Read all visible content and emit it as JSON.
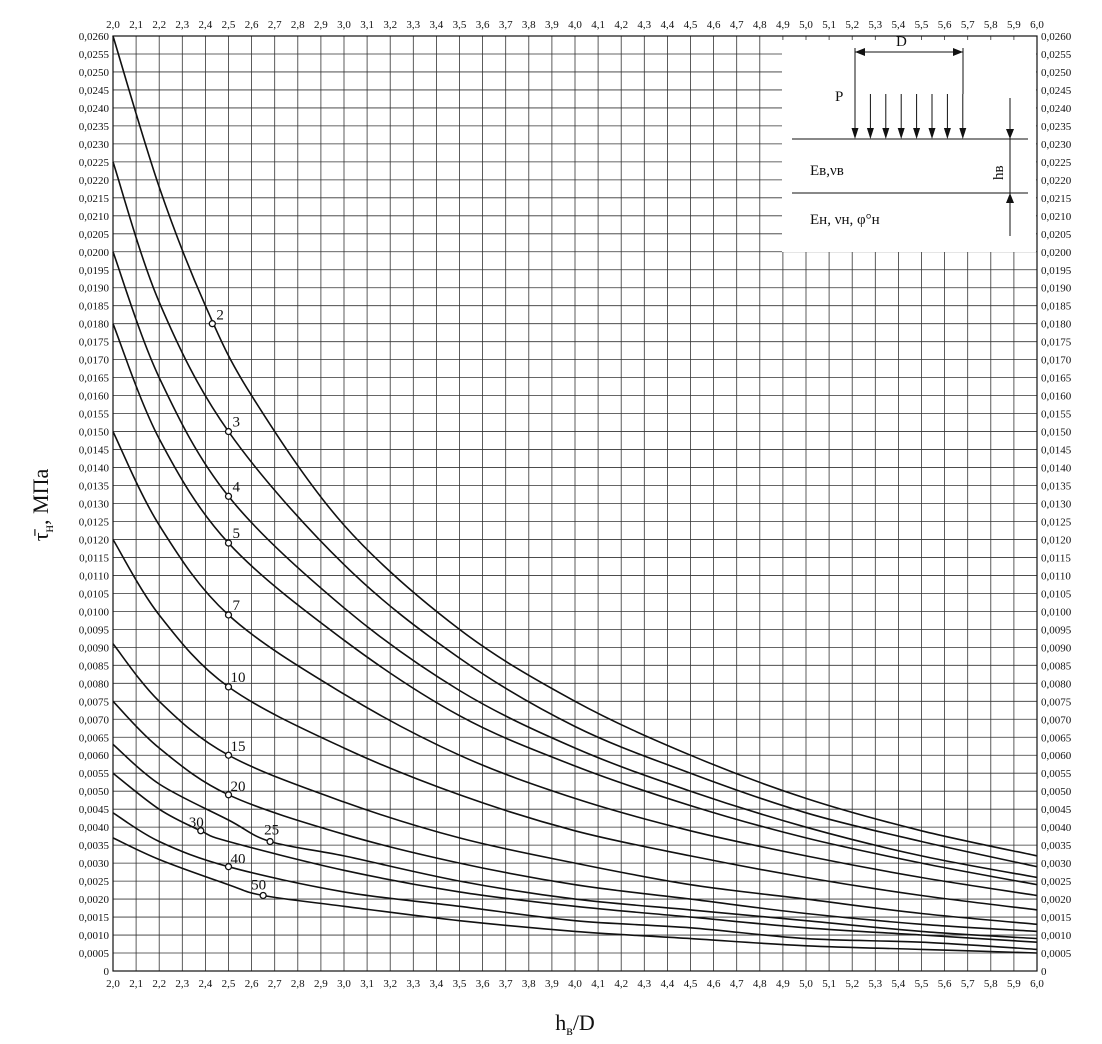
{
  "chart_data": {
    "type": "line",
    "xlabel": {
      "main": "h",
      "sub": "в",
      "rest": "/D"
    },
    "ylabel": {
      "main": "τ̄",
      "sub": "н",
      "rest": ", МПа"
    },
    "xlim": [
      2.0,
      6.0
    ],
    "ylim": [
      0,
      0.026
    ],
    "x_tick_step": 0.1,
    "y_tick_step": 0.0005,
    "grid": true,
    "x_ticks": [
      "2,0",
      "2,1",
      "2,2",
      "2,3",
      "2,4",
      "2,5",
      "2,6",
      "2,7",
      "2,8",
      "2,9",
      "3,0",
      "3,1",
      "3,2",
      "3,3",
      "3,4",
      "3,5",
      "3,6",
      "3,7",
      "3,8",
      "3,9",
      "4,0",
      "4,1",
      "4,2",
      "4,3",
      "4,4",
      "4,5",
      "4,6",
      "4,7",
      "4,8",
      "4,9",
      "5,0",
      "5,1",
      "5,2",
      "5,3",
      "5,4",
      "5,5",
      "5,6",
      "5,7",
      "5,8",
      "5,9",
      "6,0"
    ],
    "y_ticks": [
      "0",
      "0,0005",
      "0,0010",
      "0,0015",
      "0,0020",
      "0,0025",
      "0,0030",
      "0,0035",
      "0,0040",
      "0,0045",
      "0,0050",
      "0,0055",
      "0,0060",
      "0,0065",
      "0,0070",
      "0,0075",
      "0,0080",
      "0,0085",
      "0,0090",
      "0,0095",
      "0,0100",
      "0,0105",
      "0,0110",
      "0,0115",
      "0,0120",
      "0,0125",
      "0,0130",
      "0,0135",
      "0,0140",
      "0,0145",
      "0,0150",
      "0,0155",
      "0,0160",
      "0,0165",
      "0,0170",
      "0,0175",
      "0,0180",
      "0,0185",
      "0,0190",
      "0,0195",
      "0,0200",
      "0,0205",
      "0,0210",
      "0,0215",
      "0,0220",
      "0,0225",
      "0,0230",
      "0,0235",
      "0,0240",
      "0,0245",
      "0,0250",
      "0,0255",
      "0,0260"
    ],
    "series": [
      {
        "name": "2",
        "x": [
          2.0,
          2.2,
          2.4,
          2.6,
          3.0,
          3.5,
          4.0,
          4.5,
          5.0,
          5.5,
          6.0
        ],
        "y": [
          0.026,
          0.0218,
          0.0185,
          0.016,
          0.0124,
          0.0095,
          0.0075,
          0.006,
          0.0048,
          0.0039,
          0.0032
        ],
        "marker": {
          "x": 2.43,
          "y": 0.018
        }
      },
      {
        "name": "3",
        "x": [
          2.0,
          2.2,
          2.5,
          3.0,
          3.5,
          4.0,
          4.5,
          5.0,
          5.5,
          6.0
        ],
        "y": [
          0.0225,
          0.0186,
          0.015,
          0.0113,
          0.0087,
          0.0068,
          0.0055,
          0.0044,
          0.0036,
          0.0029
        ],
        "marker": {
          "x": 2.5,
          "y": 0.015
        }
      },
      {
        "name": "4",
        "x": [
          2.0,
          2.2,
          2.5,
          3.0,
          3.5,
          4.0,
          4.5,
          5.0,
          5.5,
          6.0
        ],
        "y": [
          0.02,
          0.0165,
          0.0132,
          0.0101,
          0.0078,
          0.0062,
          0.005,
          0.004,
          0.0032,
          0.0026
        ],
        "marker": {
          "x": 2.5,
          "y": 0.0132
        }
      },
      {
        "name": "5",
        "x": [
          2.0,
          2.2,
          2.5,
          3.0,
          3.5,
          4.0,
          4.5,
          5.0,
          5.5,
          6.0
        ],
        "y": [
          0.018,
          0.0148,
          0.0119,
          0.0092,
          0.0071,
          0.0057,
          0.0046,
          0.0037,
          0.003,
          0.0024
        ],
        "marker": {
          "x": 2.5,
          "y": 0.0119
        }
      },
      {
        "name": "7",
        "x": [
          2.0,
          2.2,
          2.5,
          3.0,
          3.5,
          4.0,
          4.5,
          5.0,
          5.5,
          6.0
        ],
        "y": [
          0.015,
          0.0124,
          0.0099,
          0.0077,
          0.006,
          0.0048,
          0.0039,
          0.0032,
          0.0026,
          0.0021
        ],
        "marker": {
          "x": 2.5,
          "y": 0.0099
        }
      },
      {
        "name": "10",
        "x": [
          2.0,
          2.2,
          2.5,
          3.0,
          3.5,
          4.0,
          4.5,
          5.0,
          5.5,
          6.0
        ],
        "y": [
          0.012,
          0.0099,
          0.0079,
          0.0062,
          0.0049,
          0.0039,
          0.0032,
          0.0026,
          0.0021,
          0.0017
        ],
        "marker": {
          "x": 2.5,
          "y": 0.0079
        }
      },
      {
        "name": "15",
        "x": [
          2.0,
          2.2,
          2.5,
          3.0,
          3.5,
          4.0,
          4.5,
          5.0,
          5.5,
          6.0
        ],
        "y": [
          0.0091,
          0.0075,
          0.006,
          0.0047,
          0.0037,
          0.003,
          0.0024,
          0.002,
          0.0016,
          0.0013
        ],
        "marker": {
          "x": 2.5,
          "y": 0.006
        }
      },
      {
        "name": "20",
        "x": [
          2.0,
          2.2,
          2.5,
          3.0,
          3.5,
          4.0,
          4.5,
          5.0,
          5.5,
          6.0
        ],
        "y": [
          0.0075,
          0.0062,
          0.0049,
          0.0038,
          0.003,
          0.0024,
          0.002,
          0.0016,
          0.0013,
          0.0011
        ],
        "marker": {
          "x": 2.5,
          "y": 0.0049
        }
      },
      {
        "name": "25",
        "x": [
          2.0,
          2.2,
          2.5,
          2.68,
          3.0,
          3.5,
          4.0,
          4.5,
          5.0,
          5.5,
          6.0
        ],
        "y": [
          0.0063,
          0.0052,
          0.0042,
          0.0036,
          0.0032,
          0.0025,
          0.002,
          0.0017,
          0.0014,
          0.0011,
          0.0009
        ],
        "marker": {
          "x": 2.68,
          "y": 0.0036
        }
      },
      {
        "name": "30",
        "x": [
          2.0,
          2.2,
          2.38,
          2.5,
          3.0,
          3.5,
          4.0,
          4.5,
          5.0,
          5.5,
          6.0
        ],
        "y": [
          0.0055,
          0.0045,
          0.0039,
          0.0036,
          0.0028,
          0.0022,
          0.0018,
          0.0015,
          0.0012,
          0.001,
          0.0008
        ],
        "marker": {
          "x": 2.38,
          "y": 0.0039
        }
      },
      {
        "name": "40",
        "x": [
          2.0,
          2.2,
          2.5,
          3.0,
          3.5,
          4.0,
          4.5,
          5.0,
          5.5,
          6.0
        ],
        "y": [
          0.0044,
          0.0036,
          0.0029,
          0.0022,
          0.0018,
          0.0014,
          0.0012,
          0.0009,
          0.0008,
          0.0006
        ],
        "marker": {
          "x": 2.5,
          "y": 0.0029
        }
      },
      {
        "name": "50",
        "x": [
          2.0,
          2.2,
          2.5,
          2.65,
          3.0,
          3.5,
          4.0,
          4.5,
          5.0,
          5.5,
          6.0
        ],
        "y": [
          0.0037,
          0.0031,
          0.0024,
          0.0021,
          0.0018,
          0.0014,
          0.0011,
          0.0009,
          0.0007,
          0.0006,
          0.0005
        ],
        "marker": {
          "x": 2.65,
          "y": 0.0021
        }
      }
    ],
    "inset": {
      "load_label": "P",
      "diameter_label": "D",
      "upper_layer_label": "Eв,νв",
      "lower_layer_label": "Eн, νн, φ°н",
      "thickness_label": "hв"
    }
  }
}
